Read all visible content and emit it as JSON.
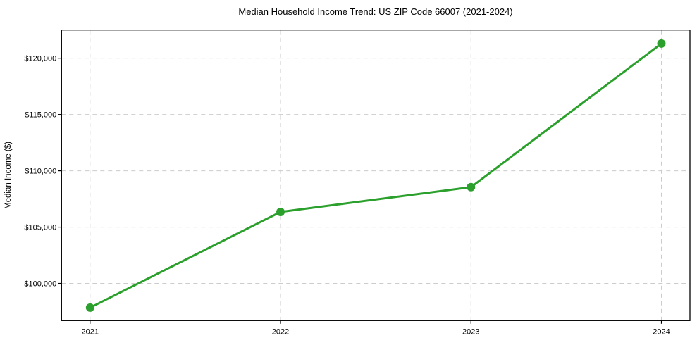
{
  "chart_data": {
    "type": "line",
    "title": "Median Household Income Trend: US ZIP Code 66007 (2021-2024)",
    "xlabel": "",
    "ylabel": "Median Income ($)",
    "x": [
      "2021",
      "2022",
      "2023",
      "2024"
    ],
    "series": [
      {
        "name": "Median Household Income",
        "values": [
          97850,
          106350,
          108550,
          121300
        ]
      }
    ],
    "y_ticks": [
      {
        "value": 100000,
        "label": "$100,000"
      },
      {
        "value": 105000,
        "label": "$105,000"
      },
      {
        "value": 110000,
        "label": "$110,000"
      },
      {
        "value": 115000,
        "label": "$115,000"
      },
      {
        "value": 120000,
        "label": "$120,000"
      }
    ],
    "ylim": [
      96700,
      122500
    ],
    "grid": true,
    "grid_style": "dashed",
    "legend": "none",
    "marker": "circle",
    "colors": {
      "line": "#2ca02c",
      "marker": "#2ca02c",
      "grid": "#cccccc",
      "axis": "#000000",
      "text": "#000000",
      "background": "#ffffff"
    }
  }
}
